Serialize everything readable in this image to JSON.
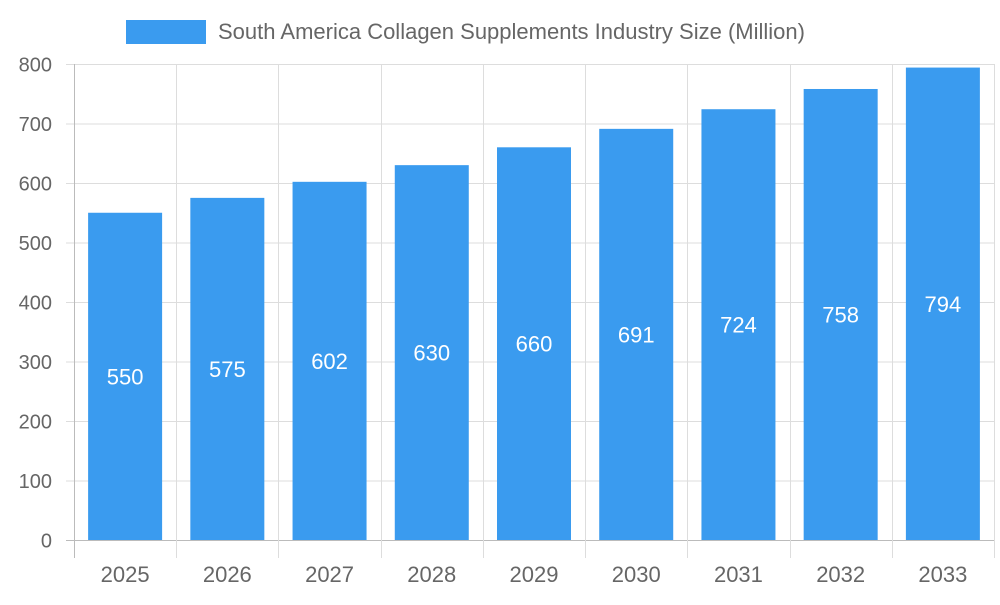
{
  "chart_data": {
    "type": "bar",
    "title": "",
    "xlabel": "",
    "ylabel": "",
    "categories": [
      "2025",
      "2026",
      "2027",
      "2028",
      "2029",
      "2030",
      "2031",
      "2032",
      "2033"
    ],
    "series": [
      {
        "name": "South America Collagen Supplements Industry Size (Million)",
        "values": [
          550,
          575,
          602,
          630,
          660,
          691,
          724,
          758,
          794
        ]
      }
    ],
    "ylim": [
      0,
      800
    ],
    "yticks": [
      0,
      100,
      200,
      300,
      400,
      500,
      600,
      700,
      800
    ],
    "grid": true,
    "legend_position": "top",
    "data_labels": true,
    "colors": {
      "bar": "#3a9bef",
      "grid": "#dddddd",
      "text": "#666666",
      "label": "#ffffff"
    }
  }
}
